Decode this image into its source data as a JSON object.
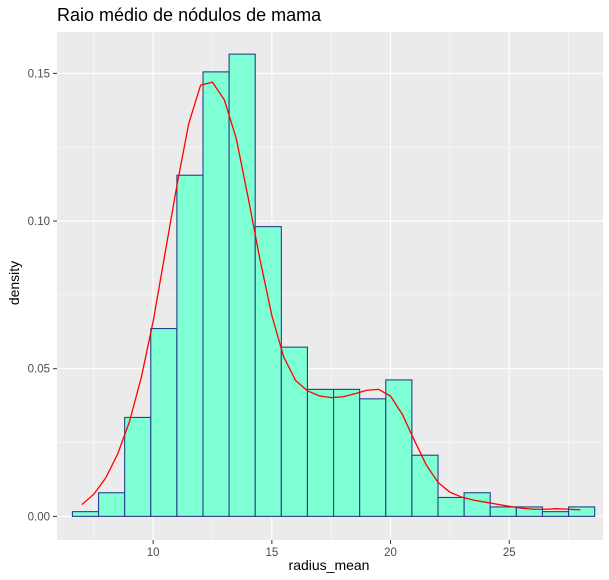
{
  "chart_data": {
    "type": "histogram",
    "title": "Raio médio de nódulos de mama",
    "xlabel": "radius_mean",
    "ylabel": "density",
    "xlim": [
      5.95,
      28.95
    ],
    "ylim": [
      -0.008,
      0.164
    ],
    "x_ticks": [
      10,
      15,
      20,
      25
    ],
    "x_tick_labels": [
      "10",
      "15",
      "20",
      "25"
    ],
    "y_ticks": [
      0.0,
      0.05,
      0.1,
      0.15
    ],
    "y_tick_labels": [
      "0.00",
      "0.05",
      "0.10",
      "0.15"
    ],
    "grid": true,
    "bin_width": 1.1,
    "bins": [
      {
        "x0": 6.6,
        "x1": 7.7,
        "density": 0.0016
      },
      {
        "x0": 7.7,
        "x1": 8.8,
        "density": 0.008
      },
      {
        "x0": 8.8,
        "x1": 9.9,
        "density": 0.0335
      },
      {
        "x0": 9.9,
        "x1": 11.0,
        "density": 0.0636
      },
      {
        "x0": 11.0,
        "x1": 12.1,
        "density": 0.1155
      },
      {
        "x0": 12.1,
        "x1": 13.2,
        "density": 0.1505
      },
      {
        "x0": 13.2,
        "x1": 14.3,
        "density": 0.1565
      },
      {
        "x0": 14.3,
        "x1": 15.4,
        "density": 0.0981
      },
      {
        "x0": 15.4,
        "x1": 16.5,
        "density": 0.0573
      },
      {
        "x0": 16.5,
        "x1": 17.6,
        "density": 0.043
      },
      {
        "x0": 17.6,
        "x1": 18.7,
        "density": 0.043
      },
      {
        "x0": 18.7,
        "x1": 19.8,
        "density": 0.0398
      },
      {
        "x0": 19.8,
        "x1": 20.9,
        "density": 0.0462
      },
      {
        "x0": 20.9,
        "x1": 22.0,
        "density": 0.0207
      },
      {
        "x0": 22.0,
        "x1": 23.1,
        "density": 0.0064
      },
      {
        "x0": 23.1,
        "x1": 24.2,
        "density": 0.008
      },
      {
        "x0": 24.2,
        "x1": 25.3,
        "density": 0.0032
      },
      {
        "x0": 25.3,
        "x1": 26.4,
        "density": 0.0032
      },
      {
        "x0": 26.4,
        "x1": 27.5,
        "density": 0.0016
      },
      {
        "x0": 27.5,
        "x1": 28.6,
        "density": 0.0032
      }
    ],
    "density_curve": {
      "x": [
        7.0,
        7.5,
        8.0,
        8.5,
        9.0,
        9.5,
        10.0,
        10.5,
        11.0,
        11.5,
        12.0,
        12.5,
        13.0,
        13.5,
        14.0,
        14.5,
        15.0,
        15.5,
        16.0,
        16.5,
        17.0,
        17.5,
        18.0,
        18.5,
        19.0,
        19.5,
        20.0,
        20.5,
        21.0,
        21.5,
        22.0,
        22.5,
        23.0,
        23.5,
        24.0,
        24.5,
        25.0,
        25.5,
        26.0,
        26.5,
        27.0,
        27.5,
        28.0
      ],
      "y": [
        0.004,
        0.0075,
        0.013,
        0.021,
        0.032,
        0.047,
        0.066,
        0.089,
        0.112,
        0.133,
        0.146,
        0.147,
        0.141,
        0.128,
        0.108,
        0.087,
        0.068,
        0.054,
        0.046,
        0.0425,
        0.0408,
        0.0402,
        0.0405,
        0.0415,
        0.0427,
        0.043,
        0.0407,
        0.0345,
        0.0258,
        0.0175,
        0.0115,
        0.0082,
        0.0065,
        0.0055,
        0.0048,
        0.0041,
        0.0034,
        0.0028,
        0.0024,
        0.0024,
        0.0026,
        0.0024,
        0.0022
      ]
    },
    "colors": {
      "panel_background": "#ebebeb",
      "bar_fill": "#7fffd4",
      "bar_outline": "#27408b",
      "density_line": "#ff0000"
    }
  }
}
